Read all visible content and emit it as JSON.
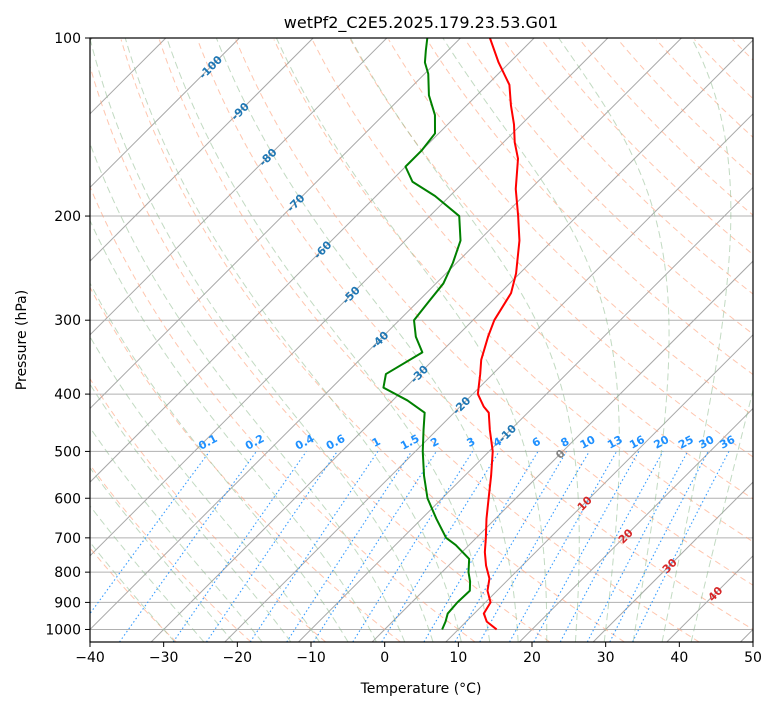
{
  "chart_data": {
    "type": "line",
    "title": "wetPf2_C2E5.2025.179.23.53.G01",
    "xlabel": "Temperature (°C)",
    "ylabel": "Pressure (hPa)",
    "xlim": [
      -40,
      50
    ],
    "ylim": [
      1050,
      100
    ],
    "y_scale": "log",
    "grid": true,
    "xticks": [
      -40,
      -30,
      -20,
      -10,
      0,
      10,
      20,
      30,
      40,
      50
    ],
    "yticks": [
      100,
      200,
      300,
      400,
      500,
      600,
      700,
      800,
      900,
      1000
    ],
    "series": [
      {
        "color": "#ff0000",
        "points": [
          {
            "p": 1000,
            "t": 15.2
          },
          {
            "p": 970,
            "t": 12.8
          },
          {
            "p": 940,
            "t": 11.3
          },
          {
            "p": 900,
            "t": 10.7
          },
          {
            "p": 860,
            "t": 8.7
          },
          {
            "p": 820,
            "t": 7.3
          },
          {
            "p": 780,
            "t": 5.1
          },
          {
            "p": 740,
            "t": 3.1
          },
          {
            "p": 700,
            "t": 1.3
          },
          {
            "p": 650,
            "t": -1.2
          },
          {
            "p": 600,
            "t": -3.7
          },
          {
            "p": 550,
            "t": -6.4
          },
          {
            "p": 500,
            "t": -9.5
          },
          {
            "p": 460,
            "t": -12.8
          },
          {
            "p": 430,
            "t": -15.3
          },
          {
            "p": 420,
            "t": -16.8
          },
          {
            "p": 400,
            "t": -19.3
          },
          {
            "p": 370,
            "t": -21.7
          },
          {
            "p": 350,
            "t": -23.5
          },
          {
            "p": 320,
            "t": -25.7
          },
          {
            "p": 300,
            "t": -27.1
          },
          {
            "p": 270,
            "t": -28.5
          },
          {
            "p": 250,
            "t": -30.5
          },
          {
            "p": 220,
            "t": -34.5
          },
          {
            "p": 200,
            "t": -38.0
          },
          {
            "p": 180,
            "t": -42.0
          },
          {
            "p": 160,
            "t": -45.8
          },
          {
            "p": 150,
            "t": -48.5
          },
          {
            "p": 140,
            "t": -51.0
          },
          {
            "p": 130,
            "t": -54.0
          },
          {
            "p": 120,
            "t": -57.0
          },
          {
            "p": 110,
            "t": -61.5
          },
          {
            "p": 100,
            "t": -66.0
          }
        ]
      },
      {
        "color": "#008000",
        "points": [
          {
            "p": 1000,
            "t": 7.8
          },
          {
            "p": 970,
            "t": 7.2
          },
          {
            "p": 940,
            "t": 6.4
          },
          {
            "p": 900,
            "t": 6.2
          },
          {
            "p": 860,
            "t": 6.3
          },
          {
            "p": 830,
            "t": 5.1
          },
          {
            "p": 800,
            "t": 3.6
          },
          {
            "p": 760,
            "t": 1.9
          },
          {
            "p": 720,
            "t": -1.8
          },
          {
            "p": 700,
            "t": -4.1
          },
          {
            "p": 650,
            "t": -8.0
          },
          {
            "p": 600,
            "t": -12.0
          },
          {
            "p": 550,
            "t": -15.5
          },
          {
            "p": 500,
            "t": -19.0
          },
          {
            "p": 460,
            "t": -21.8
          },
          {
            "p": 430,
            "t": -24.0
          },
          {
            "p": 410,
            "t": -28.0
          },
          {
            "p": 390,
            "t": -33.0
          },
          {
            "p": 370,
            "t": -34.5
          },
          {
            "p": 340,
            "t": -32.5
          },
          {
            "p": 320,
            "t": -35.5
          },
          {
            "p": 300,
            "t": -38.0
          },
          {
            "p": 280,
            "t": -38.5
          },
          {
            "p": 260,
            "t": -39.0
          },
          {
            "p": 240,
            "t": -40.5
          },
          {
            "p": 220,
            "t": -42.5
          },
          {
            "p": 200,
            "t": -46.0
          },
          {
            "p": 185,
            "t": -52.0
          },
          {
            "p": 175,
            "t": -57.0
          },
          {
            "p": 165,
            "t": -60.0
          },
          {
            "p": 155,
            "t": -60.0
          },
          {
            "p": 145,
            "t": -60.5
          },
          {
            "p": 135,
            "t": -63.0
          },
          {
            "p": 125,
            "t": -66.5
          },
          {
            "p": 115,
            "t": -69.5
          },
          {
            "p": 110,
            "t": -71.5
          },
          {
            "p": 105,
            "t": -73.0
          },
          {
            "p": 100,
            "t": -74.5
          }
        ]
      }
    ],
    "isotherm_labels": [
      "-100",
      "-90",
      "-80",
      "-70",
      "-60",
      "-50",
      "-40",
      "-30",
      "-20",
      "-10"
    ],
    "mixing_ratio_labels": [
      "0.1",
      "0.2",
      "0.4",
      "0.6",
      "1",
      "1.5",
      "2",
      "3",
      "4",
      "6",
      "8",
      "10",
      "13",
      "16",
      "20",
      "25",
      "30",
      "36"
    ],
    "dry_adiabat_labels": [
      "0",
      "10",
      "20",
      "30",
      "40"
    ],
    "colors": {
      "temperature": "#ff0000",
      "dewpoint": "#008000",
      "isotherm": "#808080",
      "isotherm_label": "#1f77b4",
      "dry_adiabat": "#ffa07a",
      "moist_adiabat": "#8fbc8f",
      "mixing_ratio": "#1e90ff",
      "dry_adiabat_label": "#d62728"
    }
  }
}
